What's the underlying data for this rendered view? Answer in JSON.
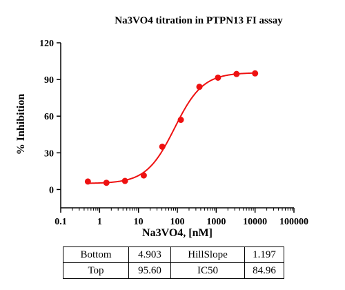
{
  "chart_data": {
    "type": "scatter",
    "title": "Na3VO4 titration in PTPN13 FI assay",
    "xlabel": "Na3VO4,  [nM]",
    "ylabel": "% Inhibition",
    "xscale": "log",
    "xlim": [
      0.1,
      100000
    ],
    "ylim": [
      -15,
      120
    ],
    "xticks": [
      0.1,
      1,
      10,
      100,
      1000,
      10000,
      100000
    ],
    "xtick_labels": [
      "0.1",
      "1",
      "10",
      "100",
      "1000",
      "10000",
      "100000"
    ],
    "yticks": [
      0,
      30,
      60,
      90,
      120
    ],
    "ytick_labels": [
      "0",
      "30",
      "60",
      "90",
      "120"
    ],
    "grid": false,
    "color": "#ee1111",
    "series": [
      {
        "x": [
          0.5,
          1.5,
          4.5,
          13.7,
          41,
          123,
          370,
          1111,
          3333,
          10000
        ],
        "y": [
          6.5,
          5.5,
          7,
          11.5,
          35,
          57,
          84,
          91.5,
          94.5,
          95
        ]
      }
    ],
    "fit": {
      "model": "sigmoidal dose-response",
      "bottom": 4.903,
      "top": 95.6,
      "hillslope": 1.197,
      "ic50": 84.96
    }
  },
  "params_table": [
    [
      "Bottom",
      "4.903",
      "HillSlope",
      "1.197"
    ],
    [
      "Top",
      "95.60",
      "IC50",
      "84.96"
    ]
  ]
}
